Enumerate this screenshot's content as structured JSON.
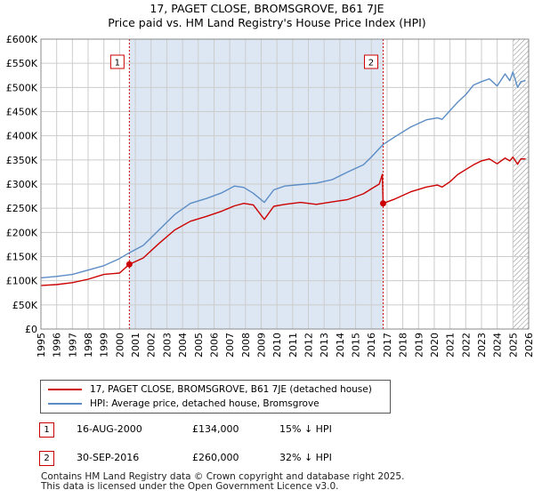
{
  "header": {
    "title_line1": "17, PAGET CLOSE, BROMSGROVE, B61 7JE",
    "title_line2": "Price paid vs. HM Land Registry's House Price Index (HPI)"
  },
  "colors": {
    "price": "#cc0000",
    "hpi": "#5b8cc5",
    "band": "#dde7f4",
    "grid": "#cccccc",
    "marker": "#cc0000"
  },
  "legend": {
    "price_label": "17, PAGET CLOSE, BROMSGROVE, B61 7JE (detached house)",
    "hpi_label": "HPI: Average price, detached house, Bromsgrove"
  },
  "transactions": [
    {
      "num": "1",
      "date": "16-AUG-2000",
      "price": "£134,000",
      "delta": "15% ↓ HPI"
    },
    {
      "num": "2",
      "date": "30-SEP-2016",
      "price": "£260,000",
      "delta": "32% ↓ HPI"
    }
  ],
  "footer": {
    "line1": "Contains HM Land Registry data © Crown copyright and database right 2025.",
    "line2": "This data is licensed under the Open Government Licence v3.0."
  },
  "chart_data": {
    "type": "line",
    "title": "17, PAGET CLOSE, BROMSGROVE, B61 7JE",
    "subtitle": "Price paid vs. HM Land Registry's House Price Index (HPI)",
    "xlabel": "",
    "ylabel": "",
    "xlim": [
      1995,
      2026
    ],
    "ylim": [
      0,
      600000
    ],
    "x_ticks": [
      "1995",
      "1996",
      "1997",
      "1998",
      "1999",
      "2000",
      "2001",
      "2002",
      "2003",
      "2004",
      "2005",
      "2006",
      "2007",
      "2008",
      "2009",
      "2010",
      "2011",
      "2012",
      "2013",
      "2014",
      "2015",
      "2016",
      "2017",
      "2018",
      "2019",
      "2020",
      "2021",
      "2022",
      "2023",
      "2024",
      "2025",
      "2026"
    ],
    "y_ticks": [
      {
        "value": 0,
        "label": "£0"
      },
      {
        "value": 50000,
        "label": "£50K"
      },
      {
        "value": 100000,
        "label": "£100K"
      },
      {
        "value": 150000,
        "label": "£150K"
      },
      {
        "value": 200000,
        "label": "£200K"
      },
      {
        "value": 250000,
        "label": "£250K"
      },
      {
        "value": 300000,
        "label": "£300K"
      },
      {
        "value": 350000,
        "label": "£350K"
      },
      {
        "value": 400000,
        "label": "£400K"
      },
      {
        "value": 450000,
        "label": "£450K"
      },
      {
        "value": 500000,
        "label": "£500K"
      },
      {
        "value": 550000,
        "label": "£550K"
      },
      {
        "value": 600000,
        "label": "£600K"
      }
    ],
    "grid": true,
    "legend_position": "below",
    "shaded_range": [
      2000.62,
      2016.75
    ],
    "future_hatch_from": 2025.0,
    "series": [
      {
        "name": "HPI: Average price, detached house, Bromsgrove",
        "x": [
          1995.0,
          1996.0,
          1997.0,
          1998.0,
          1999.0,
          2000.0,
          2000.62,
          2001.5,
          2002.5,
          2003.5,
          2004.5,
          2005.5,
          2006.5,
          2007.3,
          2007.9,
          2008.5,
          2009.2,
          2009.8,
          2010.5,
          2011.5,
          2012.5,
          2013.5,
          2014.5,
          2015.5,
          2016.0,
          2016.75,
          2017.5,
          2018.5,
          2019.5,
          2020.2,
          2020.5,
          2021.0,
          2021.5,
          2022.0,
          2022.5,
          2023.0,
          2023.5,
          2024.0,
          2024.5,
          2024.8,
          2025.0,
          2025.3,
          2025.5,
          2025.8
        ],
        "values": [
          106000,
          109000,
          113000,
          122000,
          131000,
          146000,
          158000,
          173000,
          205000,
          237000,
          260000,
          270000,
          282000,
          296000,
          293000,
          281000,
          262000,
          288000,
          296000,
          299000,
          302000,
          309000,
          325000,
          340000,
          356000,
          382000,
          398000,
          418000,
          433000,
          437000,
          434000,
          452000,
          470000,
          485000,
          505000,
          512000,
          518000,
          503000,
          528000,
          514000,
          532000,
          500000,
          512000,
          514000
        ]
      },
      {
        "name": "17, PAGET CLOSE, BROMSGROVE, B61 7JE (detached house)",
        "x": [
          1995.0,
          1996.0,
          1997.0,
          1998.0,
          1999.0,
          2000.0,
          2000.62,
          2001.5,
          2002.5,
          2003.5,
          2004.5,
          2005.5,
          2006.5,
          2007.3,
          2007.9,
          2008.5,
          2009.2,
          2009.8,
          2010.5,
          2011.5,
          2012.5,
          2013.5,
          2014.5,
          2015.5,
          2016.0,
          2016.5,
          2016.7,
          2016.75,
          2017.5,
          2018.5,
          2019.5,
          2020.2,
          2020.5,
          2021.0,
          2021.5,
          2022.0,
          2022.5,
          2023.0,
          2023.5,
          2024.0,
          2024.5,
          2024.8,
          2025.0,
          2025.3,
          2025.5,
          2025.8
        ],
        "values": [
          90000,
          92000,
          96000,
          103000,
          113000,
          116000,
          134000,
          147000,
          177000,
          205000,
          223000,
          233000,
          244000,
          255000,
          260000,
          257000,
          227000,
          254000,
          258000,
          262000,
          258000,
          263000,
          268000,
          280000,
          290000,
          300000,
          320000,
          260000,
          269000,
          284000,
          294000,
          298000,
          294000,
          305000,
          320000,
          330000,
          340000,
          348000,
          352000,
          342000,
          354000,
          348000,
          356000,
          341000,
          352000,
          352000
        ]
      }
    ],
    "markers": [
      {
        "label": "1",
        "x": 2000.62,
        "value": 134000
      },
      {
        "label": "2",
        "x": 2016.75,
        "value": 260000
      }
    ]
  }
}
